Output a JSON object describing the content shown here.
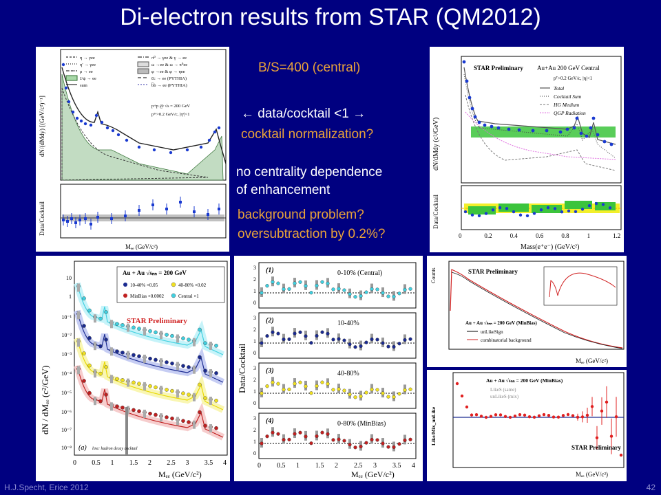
{
  "slide": {
    "title": "Di-electron results from STAR (QM2012)",
    "footer_left": "H.J.Specht, Erice 2012",
    "footer_right": "42"
  },
  "notes": {
    "bs": "B/S=400 (central)",
    "arrow_line": "← data/cocktail <1 →",
    "cocktail_norm": "cocktail normalization?",
    "no_centrality_1": "no centrality dependence",
    "no_centrality_2": "of enhancement",
    "background_1": "background problem?",
    "background_2": "oversubtraction by 0.2%?"
  },
  "plot_tl": {
    "ylabel_top": "dN/(dMdy) [(GeV/c²)⁻¹]",
    "ylabel_bottom": "Data/Cocktail",
    "xlabel": "Mₑₑ (GeV/c²)",
    "legend": [
      "η → γee",
      "η' → γee",
      "ρ → ee",
      "J/ψ → ee",
      "sum",
      "π⁰ → γee & γ → ee",
      "ω →ee & ω → π⁰ee",
      "φ →ee & φ → ηee",
      "c̅c → ee (PYTHIA)",
      "b̅b → ee (PYTHIA)"
    ],
    "info_1": "p+p @ √s = 200 GeV",
    "info_2": "pᵀᵉ>0.2 GeV/c, |ηᵉ|<1"
  },
  "plot_tr": {
    "header": "STAR Preliminary",
    "system": "Au+Au 200 GeV Central",
    "cuts": "pᵀ>0.2 GeV/c, |η|<1",
    "legend": [
      "Total",
      "Cocktail Sum",
      "HG Medium",
      "QGP Radiation"
    ],
    "ylabel_top": "dN/dMdy (c²/GeV)",
    "ylabel_bottom": "Data/Cocktail",
    "xlabel": "Mass(e⁺e⁻) (GeV/c²)",
    "xticks": [
      "0",
      "0.2",
      "0.4",
      "0.6",
      "0.8",
      "1",
      "1.2"
    ]
  },
  "plot_bl": {
    "system": "Au + Au  √sₙₙ = 200 GeV",
    "legend": [
      "10-40% ×0.05",
      "40-80% ×0.02",
      "MinBias ×0.0002",
      "Central ×1"
    ],
    "star": "STAR Preliminary",
    "ylabel": "dN / dMₑₑ (c²/GeV)",
    "xlabel": "Mₑₑ (GeV/c²)",
    "panel_tag": "(a)",
    "line_note": "line: hadron decay cocktail",
    "xticks": [
      "0",
      "0.5",
      "1",
      "1.5",
      "2",
      "2.5",
      "3",
      "3.5",
      "4"
    ]
  },
  "plot_bm": {
    "ylabel": "Data/Cocktail",
    "xlabel": "Mₑₑ (GeV/c²)",
    "panels": [
      {
        "tag": "(1)",
        "label": "0-10% (Central)"
      },
      {
        "tag": "(2)",
        "label": "10-40%"
      },
      {
        "tag": "(3)",
        "label": "40-80%"
      },
      {
        "tag": "(4)",
        "label": "0-80% (MinBias)"
      }
    ],
    "xticks": [
      "0",
      "0.5",
      "1",
      "1.5",
      "2",
      "2.5",
      "3",
      "3.5",
      "4"
    ]
  },
  "plot_br_top": {
    "header": "STAR Preliminary",
    "ylabel": "Counts",
    "system": "Au + Au √sₙₙ = 200 GeV (MinBias)",
    "legend": [
      "unLikeSign",
      "combinatorial background"
    ],
    "xlabel": "Mₑₑ (GeV/c²)"
  },
  "plot_br_bottom": {
    "ylabel": "Like/Mix_unLike",
    "system": "Au + Au √sₙₙ = 200 GeV (MinBias)",
    "legend": [
      "LikeS (same)",
      "unLikeS (mix)"
    ],
    "star": "STAR Preliminary",
    "xlabel": "Mₑₑ (GeV/c²)"
  }
}
